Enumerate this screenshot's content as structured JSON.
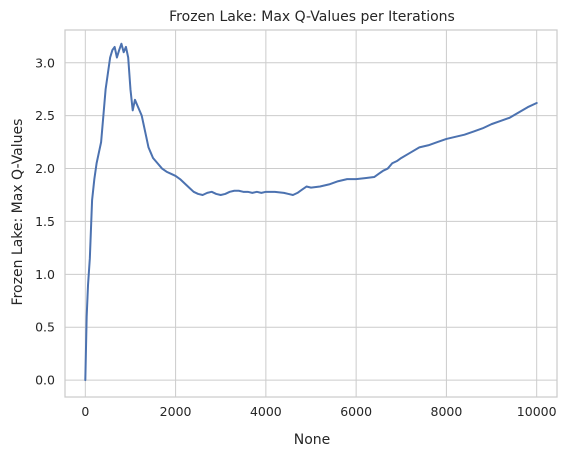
{
  "chart_data": {
    "type": "line",
    "title": "Frozen Lake: Max Q-Values per Iterations",
    "xlabel": "None",
    "ylabel": "Frozen Lake: Max Q-Values",
    "xlim": [
      -450,
      10450
    ],
    "ylim": [
      -0.16,
      3.31
    ],
    "grid": true,
    "x_ticks": [
      0,
      2000,
      4000,
      6000,
      8000,
      10000
    ],
    "x_tick_labels": [
      "0",
      "2000",
      "4000",
      "6000",
      "8000",
      "10000"
    ],
    "y_ticks": [
      0.0,
      0.5,
      1.0,
      1.5,
      2.0,
      2.5,
      3.0
    ],
    "y_tick_labels": [
      "0.0",
      "0.5",
      "1.0",
      "1.5",
      "2.0",
      "2.5",
      "3.0"
    ],
    "colors": {
      "line": "#4c72b0",
      "grid": "#cccccc",
      "frame": "#cccccc"
    },
    "series": [
      {
        "x": [
          0,
          30,
          60,
          100,
          150,
          200,
          250,
          300,
          350,
          400,
          450,
          500,
          550,
          600,
          650,
          700,
          750,
          800,
          850,
          900,
          950,
          1000,
          1050,
          1100,
          1150,
          1200,
          1250,
          1300,
          1350,
          1400,
          1450,
          1500,
          1600,
          1700,
          1800,
          1900,
          2000,
          2100,
          2200,
          2300,
          2400,
          2500,
          2600,
          2700,
          2800,
          2900,
          3000,
          3100,
          3200,
          3300,
          3400,
          3500,
          3600,
          3700,
          3800,
          3900,
          4000,
          4200,
          4400,
          4500,
          4600,
          4700,
          4800,
          4900,
          5000,
          5200,
          5400,
          5600,
          5800,
          6000,
          6200,
          6400,
          6500,
          6600,
          6700,
          6800,
          6900,
          7000,
          7200,
          7400,
          7600,
          7800,
          8000,
          8200,
          8400,
          8600,
          8800,
          9000,
          9200,
          9400,
          9600,
          9800,
          10000
        ],
        "values": [
          0.0,
          0.6,
          0.9,
          1.15,
          1.7,
          1.9,
          2.05,
          2.15,
          2.25,
          2.5,
          2.75,
          2.9,
          3.05,
          3.12,
          3.15,
          3.05,
          3.12,
          3.18,
          3.1,
          3.15,
          3.05,
          2.75,
          2.55,
          2.65,
          2.6,
          2.55,
          2.5,
          2.4,
          2.3,
          2.2,
          2.15,
          2.1,
          2.05,
          2.0,
          1.97,
          1.95,
          1.93,
          1.9,
          1.86,
          1.82,
          1.78,
          1.76,
          1.75,
          1.77,
          1.78,
          1.76,
          1.75,
          1.76,
          1.78,
          1.79,
          1.79,
          1.78,
          1.78,
          1.77,
          1.78,
          1.77,
          1.78,
          1.78,
          1.77,
          1.76,
          1.75,
          1.77,
          1.8,
          1.83,
          1.82,
          1.83,
          1.85,
          1.88,
          1.9,
          1.9,
          1.91,
          1.92,
          1.95,
          1.98,
          2.0,
          2.05,
          2.07,
          2.1,
          2.15,
          2.2,
          2.22,
          2.25,
          2.28,
          2.3,
          2.32,
          2.35,
          2.38,
          2.42,
          2.45,
          2.48,
          2.53,
          2.58,
          2.62
        ]
      }
    ]
  }
}
